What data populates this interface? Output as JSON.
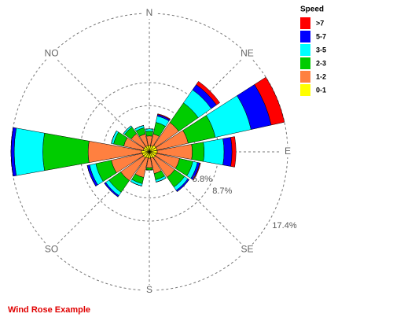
{
  "chart_data": {
    "type": "wind_rose",
    "title": "Wind Rose Example",
    "legend_title": "Speed",
    "categories": [
      "N",
      null,
      "NE",
      null,
      "E",
      null,
      "SE",
      null,
      "S",
      null,
      "SO",
      null,
      null,
      null,
      "NO",
      null
    ],
    "series": [
      {
        "name": "0-1",
        "color": "#ffff00",
        "values": [
          0.8,
          0.8,
          1.0,
          1.0,
          1.0,
          0.9,
          0.9,
          0.8,
          0.8,
          0.8,
          0.9,
          0.9,
          1.0,
          0.8,
          0.8,
          0.8
        ]
      },
      {
        "name": "1-2",
        "color": "#ff8040",
        "values": [
          1.2,
          1.5,
          3.5,
          4.0,
          4.4,
          3.0,
          3.0,
          2.0,
          1.2,
          2.5,
          3.5,
          4.0,
          6.7,
          2.5,
          2.0,
          1.5
        ]
      },
      {
        "name": "2-3",
        "color": "#00cc00",
        "values": [
          0.6,
          1.5,
          3.0,
          3.5,
          1.5,
          1.7,
          1.5,
          0.8,
          0.3,
          0.8,
          1.8,
          2.0,
          5.7,
          1.3,
          1.0,
          0.8
        ]
      },
      {
        "name": "3-5",
        "color": "#00ffff",
        "values": [
          0.3,
          0.8,
          2.0,
          4.6,
          2.5,
          0.6,
          0.5,
          0.3,
          0,
          0.3,
          0.5,
          0.8,
          3.6,
          0.3,
          0.2,
          0.3
        ]
      },
      {
        "name": "5-7",
        "color": "#0000ff",
        "values": [
          0,
          0.2,
          0.8,
          2.6,
          1.0,
          0.3,
          0.2,
          0,
          0,
          0,
          0.2,
          0.3,
          0.4,
          0,
          0,
          0
        ]
      },
      {
        "name": ">7",
        "color": "#ff0000",
        "values": [
          0,
          0.1,
          0.5,
          1.7,
          0.5,
          0.1,
          0,
          0,
          0,
          0,
          0,
          0,
          0,
          0,
          0,
          0
        ]
      }
    ],
    "rlim": [
      0,
      17.4
    ],
    "rticks": [
      {
        "value": 5.8,
        "label": "5.8%"
      },
      {
        "value": 8.7,
        "label": "8.7%"
      },
      {
        "value": 17.4,
        "label": "17.4%"
      }
    ]
  }
}
